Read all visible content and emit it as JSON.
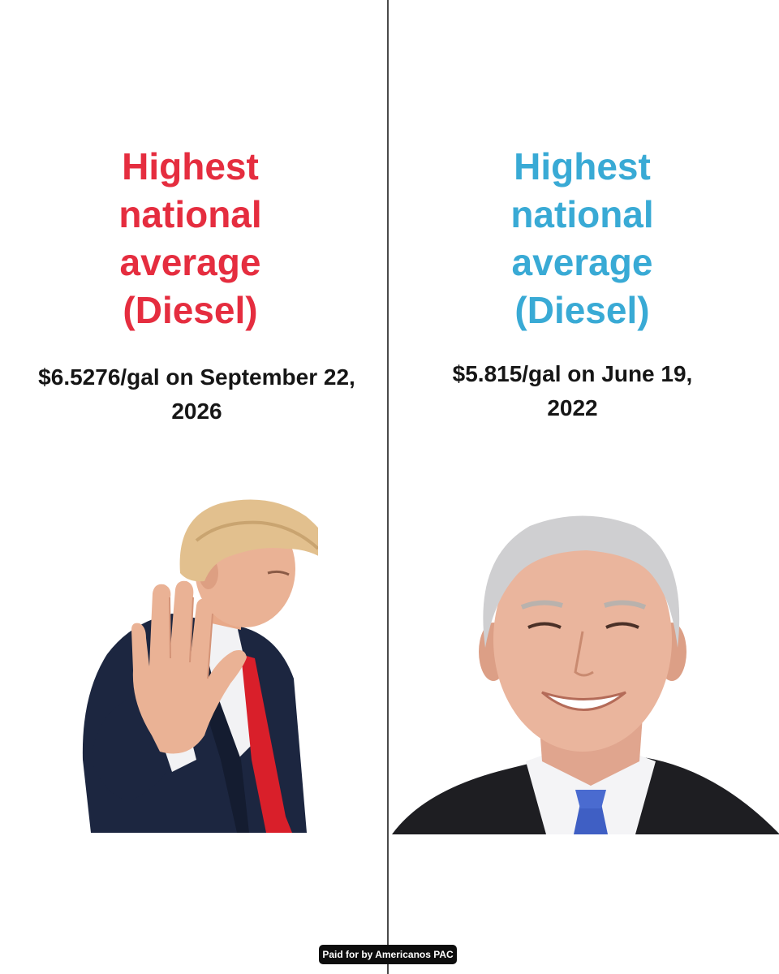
{
  "left": {
    "headline_lines": [
      "Highest",
      "national",
      "average",
      "(Diesel)"
    ],
    "price_lines": [
      "$6.5276/gal on September 22,",
      "2026"
    ],
    "accent_color": "#e52d3f"
  },
  "right": {
    "headline_lines": [
      "Highest",
      "national",
      "average",
      "(Diesel)"
    ],
    "price_lines": [
      "$5.815/gal on June 19,",
      "2022"
    ],
    "accent_color": "#39aad5"
  },
  "footer": {
    "disclaimer": "Paid for by Americanos PAC"
  }
}
